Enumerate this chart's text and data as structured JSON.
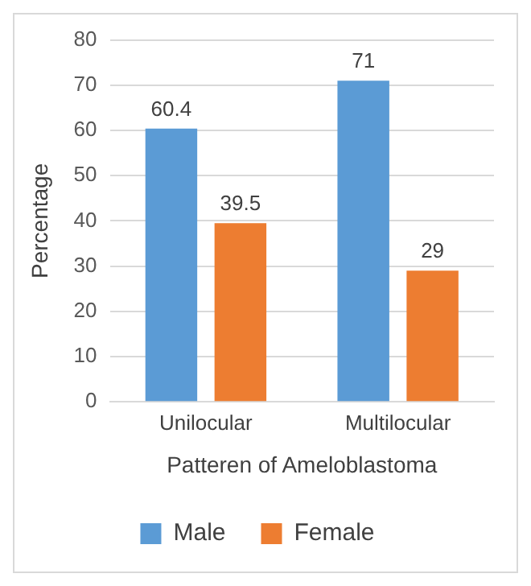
{
  "chart_data": {
    "type": "bar",
    "xlabel": "Patteren of Ameloblastoma",
    "ylabel": "Percentage",
    "categories": [
      "Unilocular",
      "Multilocular"
    ],
    "series": [
      {
        "name": "Male",
        "color": "#5b9bd5",
        "values": [
          60.4,
          71
        ]
      },
      {
        "name": "Female",
        "color": "#ed7d31",
        "values": [
          39.5,
          29
        ]
      }
    ],
    "ylim": [
      0,
      80
    ],
    "yticks": [
      0,
      10,
      20,
      30,
      40,
      50,
      60,
      70,
      80
    ],
    "grid": "y",
    "legend": "bottom",
    "data_labels": true
  }
}
